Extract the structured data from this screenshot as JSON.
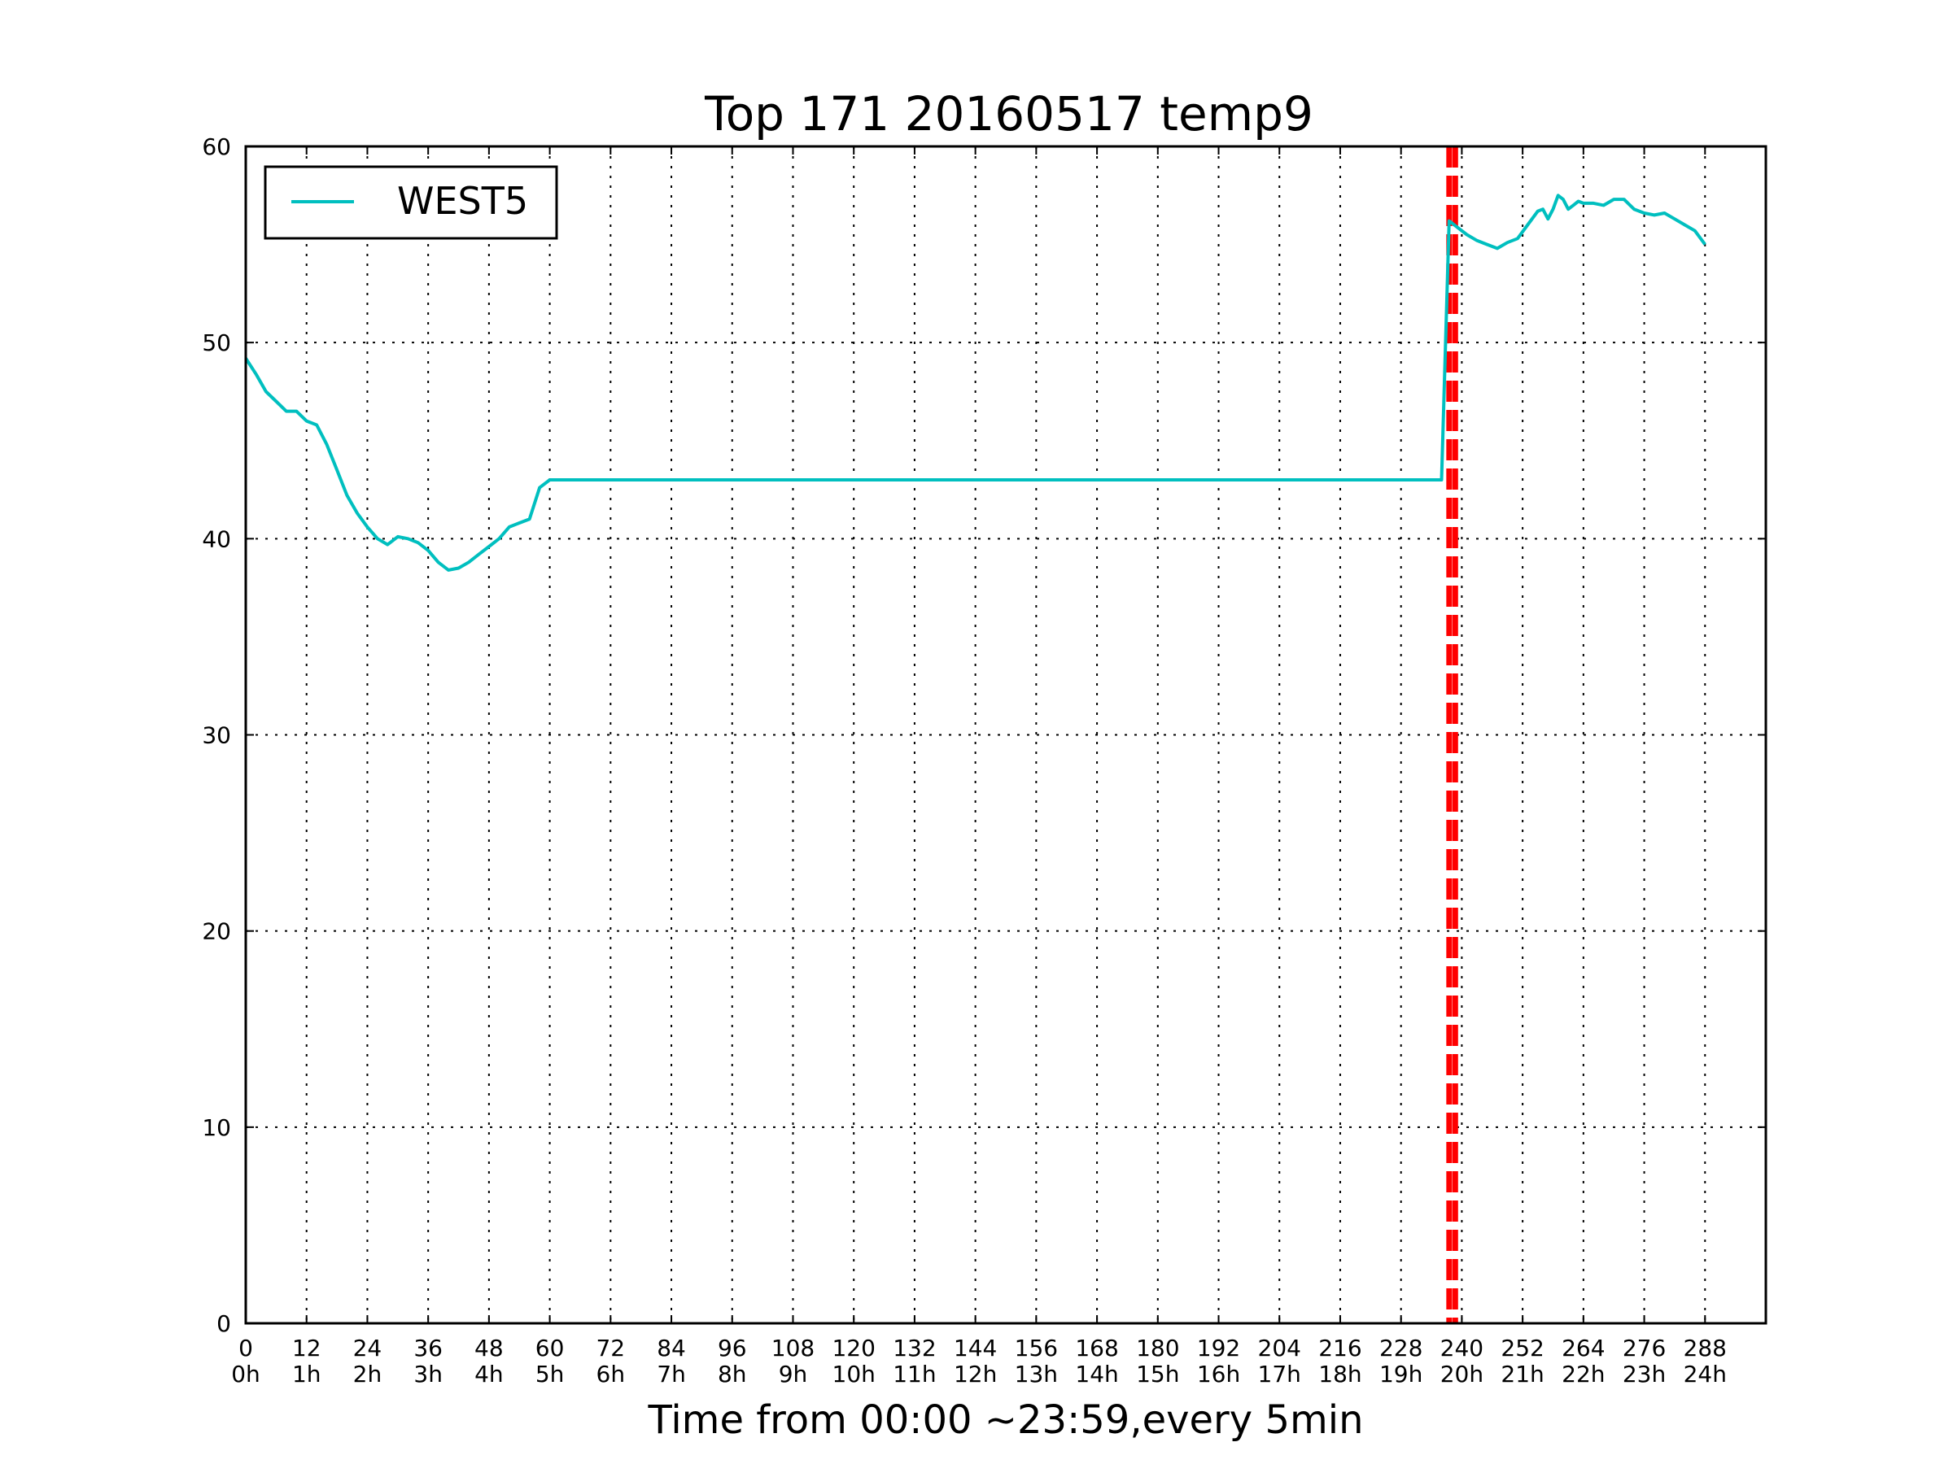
{
  "chart_data": {
    "type": "line",
    "title": "Top 171 20160517 temp9",
    "xlabel": "Time from 00:00 ~23:59,every 5min",
    "ylabel": "",
    "xlim": [
      0,
      300
    ],
    "ylim": [
      0,
      60
    ],
    "grid": true,
    "legend_position": "top-left",
    "x_ticks": [
      0,
      12,
      24,
      36,
      48,
      60,
      72,
      84,
      96,
      108,
      120,
      132,
      144,
      156,
      168,
      180,
      192,
      204,
      216,
      228,
      240,
      252,
      264,
      276,
      288
    ],
    "x_tick_labels": [
      "0",
      "12",
      "24",
      "36",
      "48",
      "60",
      "72",
      "84",
      "96",
      "108",
      "120",
      "132",
      "144",
      "156",
      "168",
      "180",
      "192",
      "204",
      "216",
      "228",
      "240",
      "252",
      "264",
      "276",
      "288"
    ],
    "x_tick_sublabels": [
      "0h",
      "1h",
      "2h",
      "3h",
      "4h",
      "5h",
      "6h",
      "7h",
      "8h",
      "9h",
      "10h",
      "11h",
      "12h",
      "13h",
      "14h",
      "15h",
      "16h",
      "17h",
      "18h",
      "19h",
      "20h",
      "21h",
      "22h",
      "23h",
      "24h"
    ],
    "y_ticks": [
      0,
      10,
      20,
      30,
      40,
      50,
      60
    ],
    "y_tick_labels": [
      "0",
      "10",
      "20",
      "30",
      "40",
      "50",
      "60"
    ],
    "series": [
      {
        "name": "WEST5",
        "color": "#00bfbf",
        "x": [
          0,
          2,
          4,
          6,
          8,
          10,
          12,
          14,
          16,
          18,
          20,
          22,
          24,
          26,
          28,
          30,
          32,
          34,
          36,
          38,
          40,
          42,
          44,
          46,
          48,
          50,
          52,
          54,
          56,
          58,
          60,
          62,
          64,
          66,
          70,
          80,
          100,
          120,
          140,
          160,
          180,
          200,
          220,
          236,
          237.5,
          239,
          241,
          243,
          245,
          247,
          249,
          251,
          253,
          255,
          256,
          257,
          258,
          259,
          260,
          261,
          262,
          263,
          264,
          266,
          268,
          270,
          272,
          274,
          276,
          278,
          280,
          282,
          284,
          286,
          288
        ],
        "y": [
          49.2,
          48.4,
          47.5,
          47.0,
          46.5,
          46.5,
          46.0,
          45.8,
          44.8,
          43.5,
          42.2,
          41.3,
          40.6,
          40.0,
          39.7,
          40.1,
          40.0,
          39.8,
          39.4,
          38.8,
          38.4,
          38.5,
          38.8,
          39.2,
          39.6,
          40.0,
          40.6,
          40.8,
          41.0,
          42.6,
          43.0,
          43.0,
          43.0,
          43.0,
          43.0,
          43.0,
          43.0,
          43.0,
          43.0,
          43.0,
          43.0,
          43.0,
          43.0,
          43.0,
          56.2,
          55.9,
          55.5,
          55.2,
          55.0,
          54.8,
          55.1,
          55.3,
          56.0,
          56.7,
          56.8,
          56.3,
          56.8,
          57.5,
          57.3,
          56.8,
          57.0,
          57.2,
          57.1,
          57.1,
          57.0,
          57.3,
          57.3,
          56.8,
          56.6,
          56.5,
          56.6,
          56.3,
          56.0,
          55.7,
          55.0
        ]
      }
    ],
    "vlines": [
      {
        "x": 237.5,
        "color": "#ff0000",
        "style": "dashed"
      },
      {
        "x": 238.7,
        "color": "#ff0000",
        "style": "dashed"
      }
    ]
  }
}
